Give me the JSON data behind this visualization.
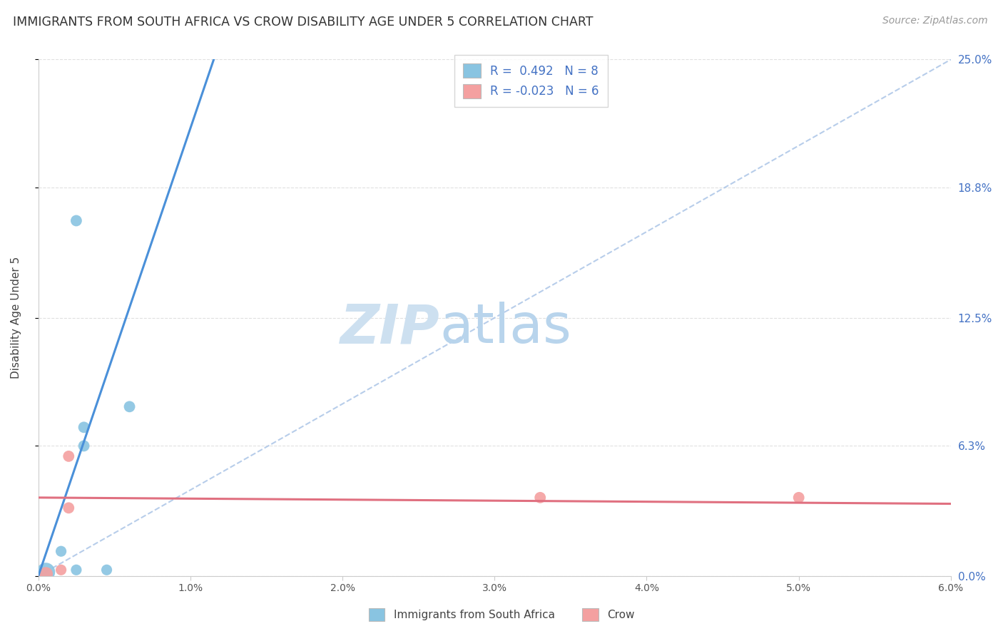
{
  "title": "IMMIGRANTS FROM SOUTH AFRICA VS CROW DISABILITY AGE UNDER 5 CORRELATION CHART",
  "source": "Source: ZipAtlas.com",
  "ylabel": "Disability Age Under 5",
  "blue_color": "#89c4e1",
  "pink_color": "#f4a0a0",
  "blue_line_color": "#4a90d9",
  "pink_line_color": "#e07080",
  "dashed_line_color": "#b0c8e8",
  "background_color": "#ffffff",
  "grid_color": "#e0e0e0",
  "xlim": [
    0.0,
    0.06
  ],
  "ylim": [
    0.0,
    0.25
  ],
  "blue_scatter_x": [
    0.0005,
    0.0015,
    0.0025,
    0.0045,
    0.003,
    0.003,
    0.006,
    0.0025
  ],
  "blue_scatter_y": [
    0.002,
    0.012,
    0.003,
    0.003,
    0.063,
    0.072,
    0.082,
    0.172
  ],
  "pink_scatter_x": [
    0.0005,
    0.0015,
    0.002,
    0.002,
    0.033,
    0.05
  ],
  "pink_scatter_y": [
    0.001,
    0.003,
    0.033,
    0.058,
    0.038,
    0.038
  ],
  "blue_scatter_sizes": [
    350,
    120,
    120,
    120,
    130,
    130,
    130,
    130
  ],
  "pink_scatter_sizes": [
    200,
    120,
    130,
    130,
    130,
    130
  ],
  "blue_line_x": [
    0.0,
    0.009
  ],
  "blue_line_y": [
    0.0,
    0.195
  ],
  "pink_line_x": [
    0.0,
    0.06
  ],
  "pink_line_y": [
    0.038,
    0.035
  ],
  "diag_line_x": [
    0.0,
    0.06
  ],
  "diag_line_y": [
    0.0,
    0.25
  ],
  "y_tick_vals": [
    0.0,
    0.063,
    0.125,
    0.188,
    0.25
  ],
  "y_tick_labels": [
    "0.0%",
    "6.3%",
    "12.5%",
    "18.8%",
    "25.0%"
  ],
  "x_tick_vals": [
    0.0,
    0.01,
    0.02,
    0.03,
    0.04,
    0.05,
    0.06
  ],
  "x_tick_labels": [
    "0.0%",
    "1.0%",
    "2.0%",
    "3.0%",
    "4.0%",
    "5.0%",
    "6.0%"
  ],
  "legend1_label": "R =  0.492   N = 8",
  "legend2_label": "R = -0.023   N = 6",
  "bottom_legend1": "Immigrants from South Africa",
  "bottom_legend2": "Crow"
}
